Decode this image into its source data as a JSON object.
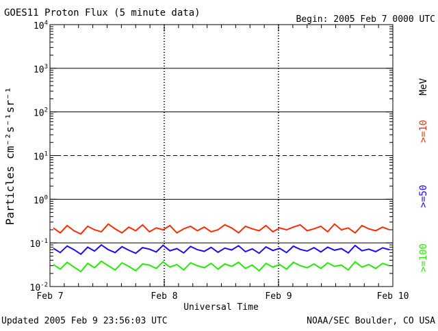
{
  "header": {
    "title": "GOES11 Proton Flux (5 minute data)",
    "begin": "Begin: 2005 Feb 7 0000 UTC"
  },
  "footer": {
    "updated": "Updated 2005 Feb  9 23:56:03 UTC",
    "credit": "NOAA/SEC Boulder, CO USA"
  },
  "chart_data": {
    "type": "line",
    "title": "GOES11 Proton Flux (5 minute data)",
    "xlabel": "Universal Time",
    "ylabel": "Particles cm⁻²s⁻¹sr⁻¹",
    "yscale": "log",
    "ylim": [
      0.01,
      10000
    ],
    "xlim_days": [
      0,
      3
    ],
    "x_tick_labels": [
      "Feb 7",
      "Feb 8",
      "Feb 9",
      "Feb 10"
    ],
    "y_tick_labels": [
      {
        "base": "10",
        "exp": "-2",
        "value": 0.01
      },
      {
        "base": "10",
        "exp": "-1",
        "value": 0.1
      },
      {
        "base": "10",
        "exp": "0",
        "value": 1
      },
      {
        "base": "10",
        "exp": "1",
        "value": 10
      },
      {
        "base": "10",
        "exp": "2",
        "value": 100
      },
      {
        "base": "10",
        "exp": "3",
        "value": 1000
      },
      {
        "base": "10",
        "exp": "4",
        "value": 10000
      }
    ],
    "reference_lines": [
      {
        "value": 1000,
        "style": "solid"
      },
      {
        "value": 100,
        "style": "solid"
      },
      {
        "value": 10,
        "style": "dashed"
      },
      {
        "value": 1,
        "style": "solid"
      },
      {
        "value": 0.1,
        "style": "solid"
      }
    ],
    "energy_unit": "MeV",
    "series": [
      {
        "name": ">=10",
        "color": "#ff2a00",
        "values": [
          0.22,
          0.17,
          0.25,
          0.19,
          0.16,
          0.24,
          0.2,
          0.18,
          0.27,
          0.21,
          0.17,
          0.23,
          0.19,
          0.26,
          0.18,
          0.22,
          0.2,
          0.25,
          0.17,
          0.21,
          0.24,
          0.19,
          0.23,
          0.18,
          0.2,
          0.26,
          0.22,
          0.17,
          0.24,
          0.21,
          0.19,
          0.25,
          0.18,
          0.22,
          0.2,
          0.23,
          0.26,
          0.19,
          0.21,
          0.24,
          0.18,
          0.27,
          0.2,
          0.22,
          0.17,
          0.25,
          0.21,
          0.19,
          0.23,
          0.2
        ]
      },
      {
        "name": ">=50",
        "color": "#1a0aff",
        "values": [
          0.075,
          0.06,
          0.085,
          0.07,
          0.055,
          0.08,
          0.065,
          0.09,
          0.07,
          0.06,
          0.082,
          0.068,
          0.058,
          0.078,
          0.072,
          0.062,
          0.088,
          0.066,
          0.074,
          0.059,
          0.083,
          0.07,
          0.064,
          0.079,
          0.061,
          0.076,
          0.069,
          0.086,
          0.063,
          0.073,
          0.058,
          0.081,
          0.067,
          0.075,
          0.06,
          0.084,
          0.071,
          0.065,
          0.078,
          0.062,
          0.08,
          0.068,
          0.074,
          0.059,
          0.087,
          0.066,
          0.072,
          0.063,
          0.077,
          0.07
        ]
      },
      {
        "name": ">=100",
        "color": "#22ee00",
        "values": [
          0.032,
          0.025,
          0.036,
          0.028,
          0.022,
          0.034,
          0.027,
          0.038,
          0.03,
          0.024,
          0.035,
          0.029,
          0.023,
          0.033,
          0.031,
          0.026,
          0.037,
          0.028,
          0.032,
          0.024,
          0.035,
          0.03,
          0.027,
          0.034,
          0.025,
          0.033,
          0.029,
          0.036,
          0.026,
          0.031,
          0.023,
          0.034,
          0.028,
          0.032,
          0.025,
          0.036,
          0.03,
          0.027,
          0.033,
          0.026,
          0.035,
          0.029,
          0.031,
          0.024,
          0.037,
          0.028,
          0.032,
          0.026,
          0.034,
          0.03
        ]
      }
    ]
  }
}
